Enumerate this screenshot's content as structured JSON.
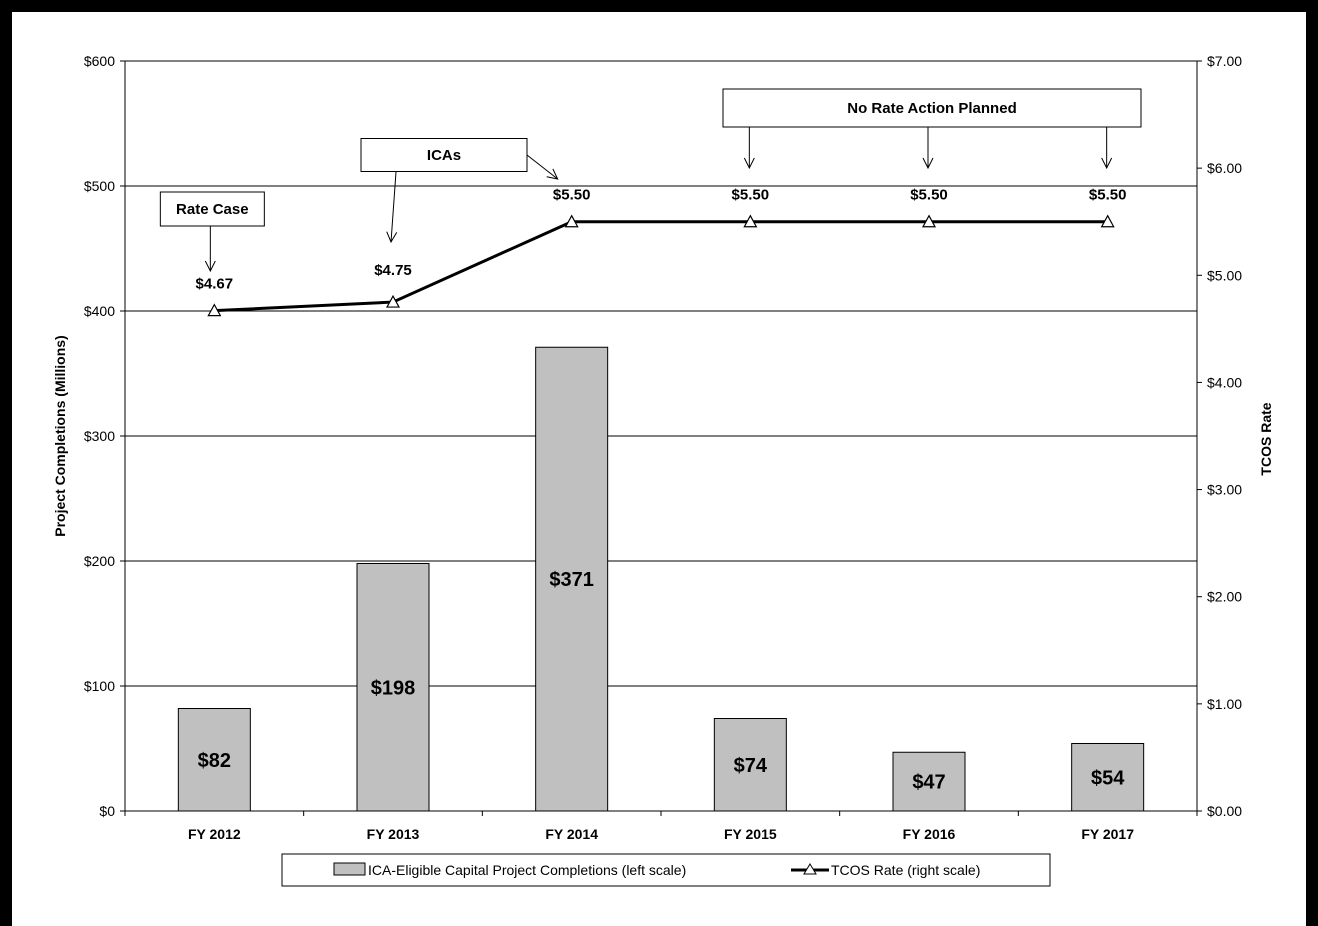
{
  "chart_data": {
    "type": "bar",
    "categories": [
      "FY 2012",
      "FY 2013",
      "FY 2014",
      "FY 2015",
      "FY 2016",
      "FY 2017"
    ],
    "series": [
      {
        "name": "ICA-Eligible Capital Project Completions (left scale)",
        "type": "bar",
        "axis": "left",
        "values": [
          82,
          198,
          371,
          74,
          47,
          54
        ],
        "labels": [
          "$82",
          "$198",
          "$371",
          "$74",
          "$47",
          "$54"
        ],
        "color": "#c0c0c0"
      },
      {
        "name": "TCOS Rate  (right scale)",
        "type": "line",
        "axis": "right",
        "values": [
          4.67,
          4.75,
          5.5,
          5.5,
          5.5,
          5.5
        ],
        "labels": [
          "$4.67",
          "$4.75",
          "$5.50",
          "$5.50",
          "$5.50",
          "$5.50"
        ],
        "color": "#000000",
        "marker": "triangle"
      }
    ],
    "ylabel": "Project Completions (Millions)",
    "ylabel_right": "TCOS Rate",
    "ylim": [
      0,
      600
    ],
    "ylim_right": [
      0,
      7
    ],
    "yticks": [
      "$0",
      "$100",
      "$200",
      "$300",
      "$400",
      "$500",
      "$600"
    ],
    "yticks_right": [
      "$0.00",
      "$1.00",
      "$2.00",
      "$3.00",
      "$4.00",
      "$5.00",
      "$6.00",
      "$7.00"
    ],
    "grid": true,
    "legend_position": "bottom",
    "annotations": [
      {
        "text": "Rate Case",
        "targets": [
          "FY 2012"
        ]
      },
      {
        "text": "ICAs",
        "targets": [
          "FY 2013",
          "FY 2014"
        ]
      },
      {
        "text": "No Rate Action Planned",
        "targets": [
          "FY 2015",
          "FY 2016",
          "FY 2017"
        ]
      }
    ]
  }
}
